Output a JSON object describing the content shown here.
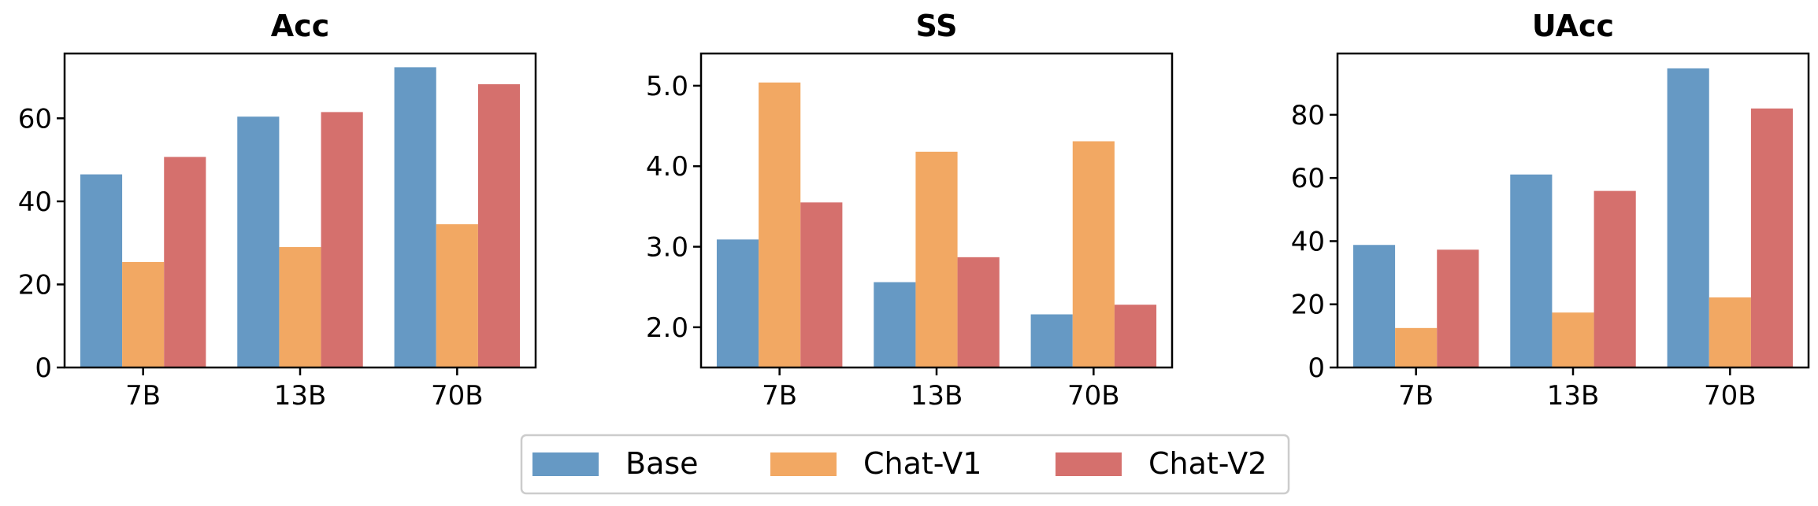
{
  "legend": {
    "items": [
      {
        "label": "Base",
        "color": "#6699c4"
      },
      {
        "label": "Chat-V1",
        "color": "#f2a863"
      },
      {
        "label": "Chat-V2",
        "color": "#d5706d"
      }
    ]
  },
  "chart_data": [
    {
      "type": "bar",
      "title": "Acc",
      "categories": [
        "7B",
        "13B",
        "70B"
      ],
      "ylim": [
        0,
        75.6
      ],
      "yticks": [
        0,
        20,
        40,
        60
      ],
      "ytick_labels": [
        "0",
        "20",
        "40",
        "60"
      ],
      "series": [
        {
          "name": "Base",
          "values": [
            46.5,
            60.4,
            72.3
          ]
        },
        {
          "name": "Chat-V1",
          "values": [
            25.4,
            29.0,
            34.5
          ]
        },
        {
          "name": "Chat-V2",
          "values": [
            50.7,
            61.5,
            68.2
          ]
        }
      ],
      "grid": false
    },
    {
      "type": "bar",
      "title": "SS",
      "categories": [
        "7B",
        "13B",
        "70B"
      ],
      "ylim": [
        1.5,
        5.4
      ],
      "yticks": [
        2.0,
        3.0,
        4.0,
        5.0
      ],
      "ytick_labels": [
        "2.0",
        "3.0",
        "4.0",
        "5.0"
      ],
      "series": [
        {
          "name": "Base",
          "values": [
            3.09,
            2.56,
            2.16
          ]
        },
        {
          "name": "Chat-V1",
          "values": [
            5.04,
            4.18,
            4.31
          ]
        },
        {
          "name": "Chat-V2",
          "values": [
            3.55,
            2.87,
            2.28
          ]
        }
      ],
      "grid": false
    },
    {
      "type": "bar",
      "title": "UAcc",
      "categories": [
        "7B",
        "13B",
        "70B"
      ],
      "ylim": [
        0,
        99.4
      ],
      "yticks": [
        0,
        20,
        40,
        60,
        80
      ],
      "ytick_labels": [
        "0",
        "20",
        "40",
        "60",
        "80"
      ],
      "series": [
        {
          "name": "Base",
          "values": [
            38.8,
            61.1,
            94.7
          ]
        },
        {
          "name": "Chat-V1",
          "values": [
            12.5,
            17.4,
            22.2
          ]
        },
        {
          "name": "Chat-V2",
          "values": [
            37.3,
            55.9,
            82.0
          ]
        }
      ],
      "grid": false
    }
  ]
}
